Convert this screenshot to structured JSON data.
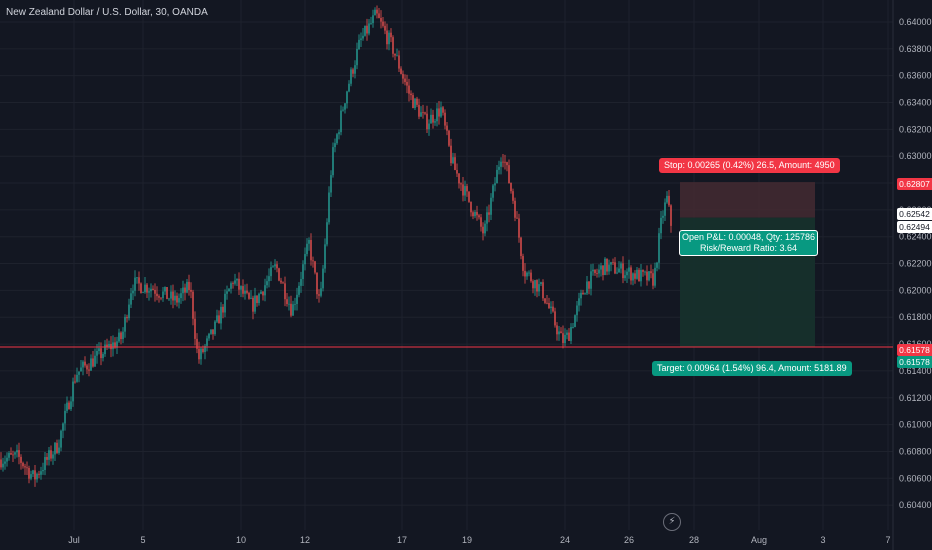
{
  "header": {
    "title": "New Zealand Dollar / U.S. Dollar, 30, OANDA"
  },
  "colors": {
    "up": "#26a69a",
    "down": "#ef5350",
    "background": "#131722",
    "stop_zone": "#442a31",
    "target_zone": "#16302c",
    "line": "#f23645"
  },
  "chart_data": {
    "type": "candlestick",
    "yticks": [
      "0.64000",
      "0.63800",
      "0.63600",
      "0.63400",
      "0.63200",
      "0.63000",
      "0.62800",
      "0.62600",
      "0.62400",
      "0.62200",
      "0.62000",
      "0.61800",
      "0.61600",
      "0.61400",
      "0.61200",
      "0.61000",
      "0.60800",
      "0.60600",
      "0.60400"
    ],
    "xticks": [
      "Jul",
      "5",
      "10",
      "12",
      "17",
      "19",
      "24",
      "26",
      "28",
      "Aug",
      "3",
      "7"
    ],
    "ylim": [
      0.6032,
      0.6412
    ],
    "approx_path": [
      [
        0,
        0.6074
      ],
      [
        18,
        0.6076
      ],
      [
        34,
        0.606
      ],
      [
        58,
        0.6085
      ],
      [
        76,
        0.6138
      ],
      [
        100,
        0.6152
      ],
      [
        122,
        0.6165
      ],
      [
        132,
        0.6205
      ],
      [
        152,
        0.6202
      ],
      [
        176,
        0.6192
      ],
      [
        190,
        0.6203
      ],
      [
        198,
        0.6148
      ],
      [
        214,
        0.617
      ],
      [
        233,
        0.6208
      ],
      [
        252,
        0.6188
      ],
      [
        276,
        0.6218
      ],
      [
        292,
        0.6185
      ],
      [
        309,
        0.6235
      ],
      [
        320,
        0.6188
      ],
      [
        332,
        0.6298
      ],
      [
        346,
        0.6347
      ],
      [
        360,
        0.6385
      ],
      [
        376,
        0.6405
      ],
      [
        392,
        0.6382
      ],
      [
        410,
        0.6345
      ],
      [
        426,
        0.6325
      ],
      [
        441,
        0.6335
      ],
      [
        452,
        0.6295
      ],
      [
        468,
        0.6268
      ],
      [
        484,
        0.6242
      ],
      [
        502,
        0.6305
      ],
      [
        514,
        0.6265
      ],
      [
        524,
        0.6215
      ],
      [
        542,
        0.62
      ],
      [
        562,
        0.6162
      ],
      [
        568,
        0.6166
      ],
      [
        586,
        0.6205
      ],
      [
        604,
        0.6218
      ],
      [
        622,
        0.6215
      ],
      [
        642,
        0.621
      ],
      [
        654,
        0.6208
      ],
      [
        662,
        0.6255
      ],
      [
        667,
        0.6268
      ],
      [
        672,
        0.6245
      ]
    ],
    "position": {
      "type": "short",
      "entry": 0.62542,
      "stop": 0.62807,
      "target": 0.61578,
      "stop_label": "Stop: 0.00265 (0.42%) 26.5, Amount: 4950",
      "target_label": "Target: 0.00964 (1.54%) 96.4, Amount: 5181.89",
      "pnl_label": "Open P&L: 0.00048, Qty: 125786",
      "rr_label": "Risk/Reward Ratio: 3.64"
    },
    "price_tags": {
      "stop": "0.62807",
      "entry": "0.62542",
      "current": "0.62494",
      "line": "0.61578",
      "target": "0.61578"
    },
    "horizontal_line": 0.61578
  }
}
